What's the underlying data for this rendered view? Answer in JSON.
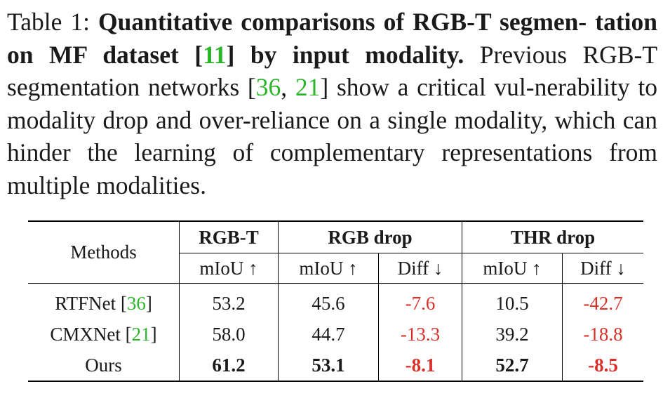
{
  "caption": {
    "label": "Table 1:",
    "title_part1": "Quantitative comparisons of RGB-T segmen-",
    "title_part2": "tation on MF dataset [",
    "title_cite": "11",
    "title_part3": "] by input modality.",
    "body_part1": " Previous RGB-T segmentation networks [",
    "cite_a": "36",
    "body_sep": ", ",
    "cite_b": "21",
    "body_part2": "] show a critical vul-nerability to modality drop and over-reliance on a single modality, which can hinder the learning of complementary representations from multiple modalities."
  },
  "table": {
    "header_methods": "Methods",
    "groups": [
      "RGB-T",
      "RGB drop",
      "THR drop"
    ],
    "subheaders": [
      "mIoU ↑",
      "mIoU ↑",
      "Diff ↓",
      "mIoU ↑",
      "Diff ↓"
    ],
    "rows": [
      {
        "method": "RTFNet [",
        "cite": "36",
        "method_end": "]",
        "cells": [
          "53.2",
          "45.6",
          "-7.6",
          "10.5",
          "-42.7"
        ]
      },
      {
        "method": "CMXNet [",
        "cite": "21",
        "method_end": "]",
        "cells": [
          "58.0",
          "44.7",
          "-13.3",
          "39.2",
          "-18.8"
        ]
      },
      {
        "method": "Ours",
        "cite": "",
        "method_end": "",
        "cells": [
          "61.2",
          "53.1",
          "-8.1",
          "52.7",
          "-8.5"
        ]
      }
    ]
  },
  "colors": {
    "citation": "#2bb52b",
    "negative": "#d9302a"
  }
}
